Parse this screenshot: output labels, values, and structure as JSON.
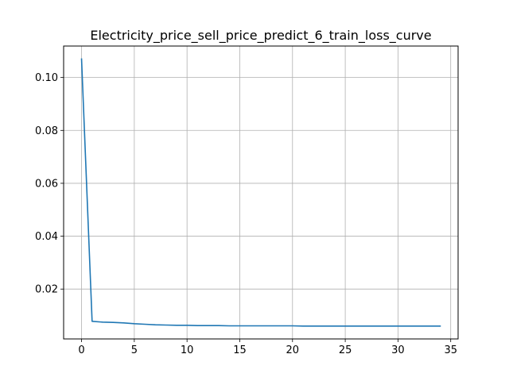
{
  "chart_data": {
    "type": "line",
    "title": "Electricity_price_sell_price_predict_6_train_loss_curve",
    "xlabel": "",
    "ylabel": "",
    "xlim": [
      -1.7,
      35.7
    ],
    "ylim": [
      0.00115,
      0.1119
    ],
    "x_ticks": [
      0,
      5,
      10,
      15,
      20,
      25,
      30,
      35
    ],
    "x_tick_labels": [
      "0",
      "5",
      "10",
      "15",
      "20",
      "25",
      "30",
      "35"
    ],
    "y_ticks": [
      0.02,
      0.04,
      0.06,
      0.08,
      0.1
    ],
    "y_tick_labels": [
      "0.02",
      "0.04",
      "0.06",
      "0.08",
      "0.10"
    ],
    "grid": true,
    "line_color": "#1f77b4",
    "series": [
      {
        "x": [
          0,
          1,
          2,
          3,
          4,
          5,
          6,
          7,
          8,
          9,
          10,
          11,
          12,
          13,
          14,
          15,
          16,
          17,
          18,
          19,
          20,
          21,
          22,
          23,
          24,
          25,
          26,
          27,
          28,
          29,
          30,
          31,
          32,
          33,
          34
        ],
        "values": [
          0.107,
          0.0078,
          0.0075,
          0.0074,
          0.0072,
          0.0069,
          0.0067,
          0.0065,
          0.0064,
          0.0063,
          0.0063,
          0.0062,
          0.0062,
          0.0062,
          0.0061,
          0.0061,
          0.0061,
          0.0061,
          0.0061,
          0.0061,
          0.0061,
          0.006,
          0.006,
          0.006,
          0.006,
          0.006,
          0.006,
          0.006,
          0.006,
          0.006,
          0.006,
          0.006,
          0.006,
          0.006,
          0.006
        ]
      }
    ]
  }
}
